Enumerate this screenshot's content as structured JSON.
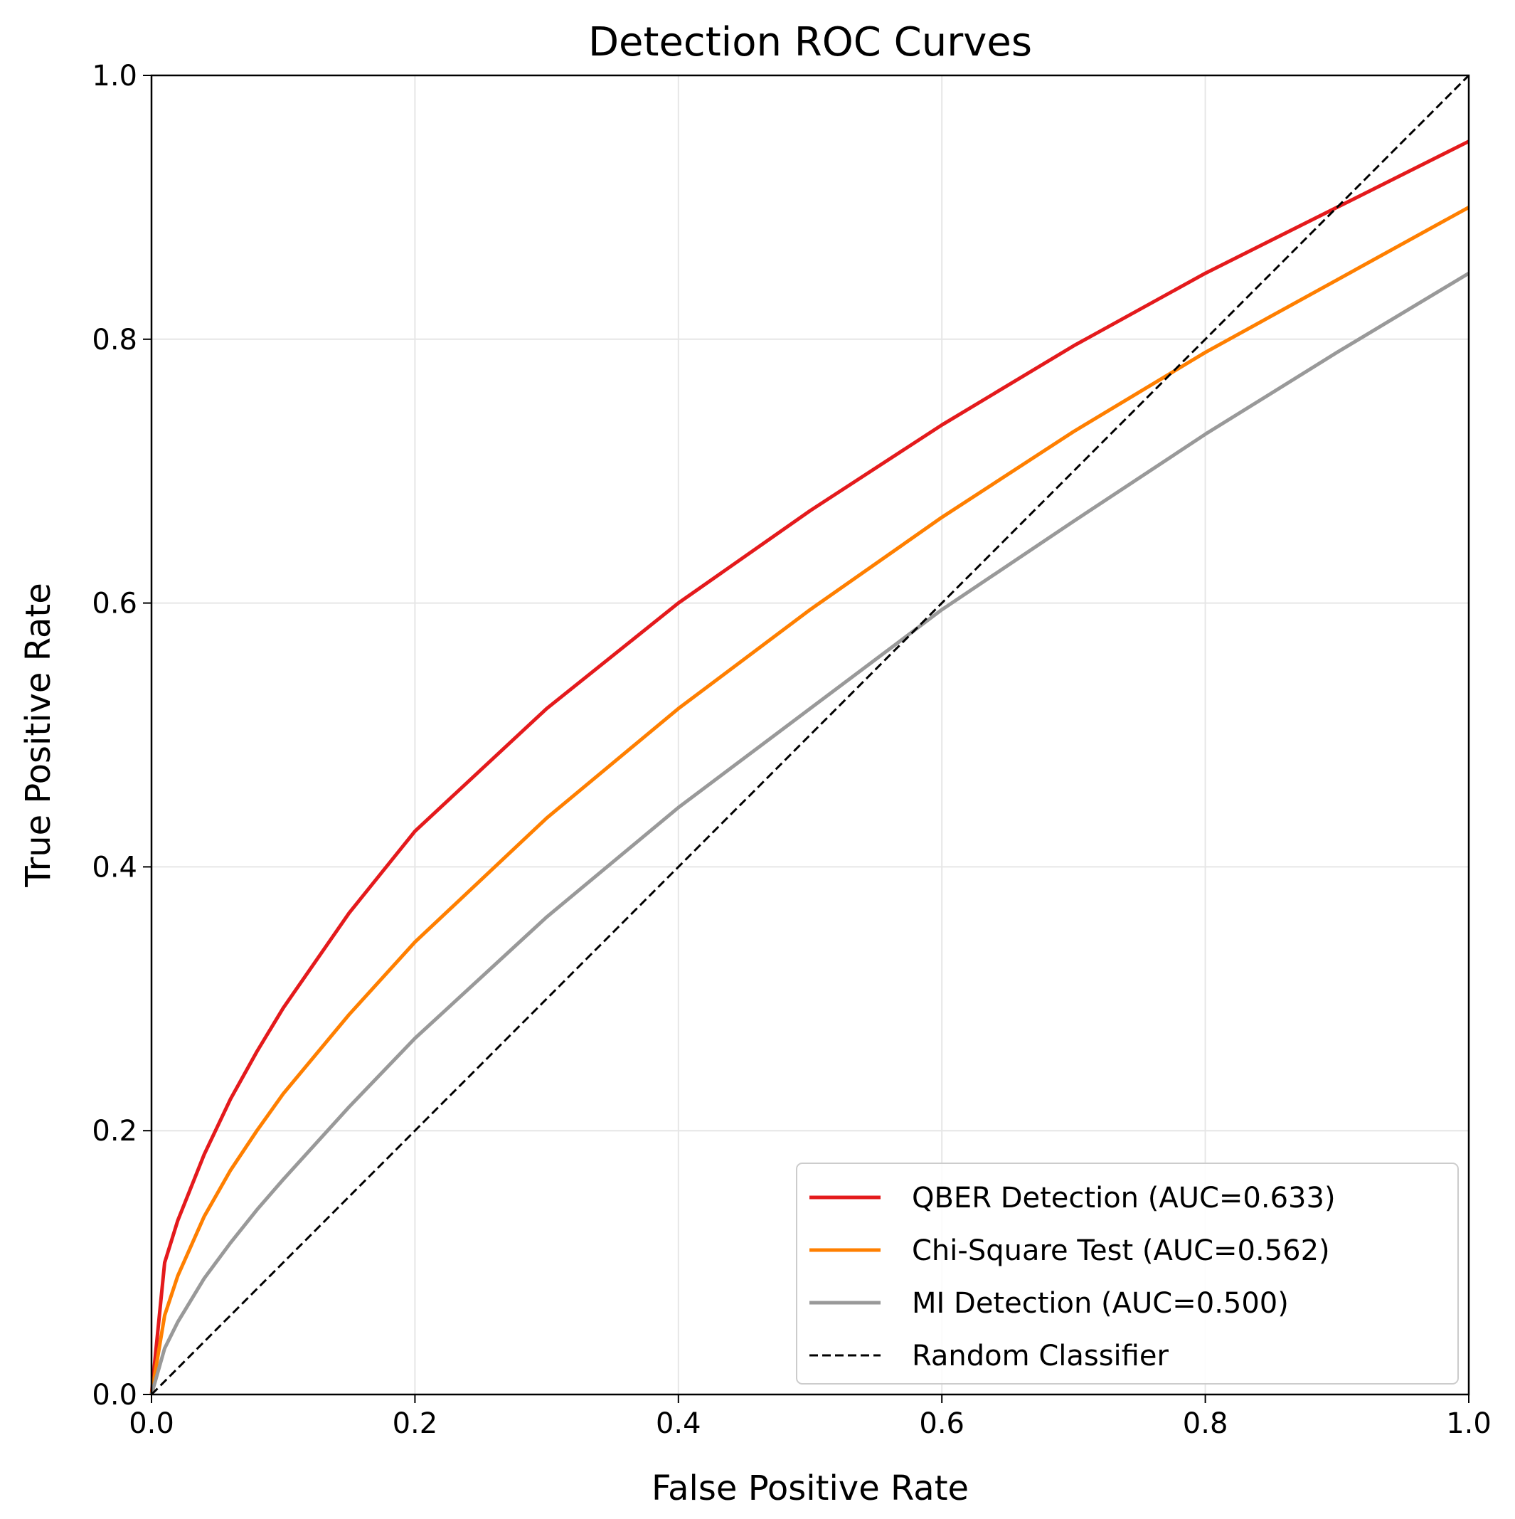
{
  "chart_data": {
    "type": "line",
    "title": "Detection ROC Curves",
    "xlabel": "False Positive Rate",
    "ylabel": "True Positive Rate",
    "xlim": [
      0.0,
      1.0
    ],
    "ylim": [
      0.0,
      1.0
    ],
    "x_ticks": [
      "0.0",
      "0.2",
      "0.4",
      "0.6",
      "0.8",
      "1.0"
    ],
    "y_ticks": [
      "0.0",
      "0.2",
      "0.4",
      "0.6",
      "0.8",
      "1.0"
    ],
    "grid": true,
    "legend_position": "lower-right",
    "series": [
      {
        "name": "QBER Detection (AUC=0.633)",
        "color": "#e41a1c",
        "style": "solid",
        "x": [
          0,
          0.01,
          0.02,
          0.04,
          0.06,
          0.08,
          0.1,
          0.15,
          0.2,
          0.3,
          0.4,
          0.5,
          0.6,
          0.7,
          0.8,
          0.9,
          1.0
        ],
        "y": [
          0,
          0.1,
          0.132,
          0.182,
          0.224,
          0.26,
          0.293,
          0.365,
          0.427,
          0.52,
          0.6,
          0.67,
          0.735,
          0.795,
          0.85,
          0.9,
          0.95
        ]
      },
      {
        "name": "Chi-Square Test (AUC=0.562)",
        "color": "#ff7f00",
        "style": "solid",
        "x": [
          0,
          0.01,
          0.02,
          0.04,
          0.06,
          0.08,
          0.1,
          0.15,
          0.2,
          0.3,
          0.4,
          0.5,
          0.6,
          0.7,
          0.8,
          0.9,
          1.0
        ],
        "y": [
          0,
          0.06,
          0.09,
          0.135,
          0.17,
          0.2,
          0.228,
          0.288,
          0.343,
          0.437,
          0.52,
          0.595,
          0.665,
          0.73,
          0.79,
          0.845,
          0.9
        ]
      },
      {
        "name": "MI Detection (AUC=0.500)",
        "color": "#999999",
        "style": "solid",
        "x": [
          0,
          0.01,
          0.02,
          0.04,
          0.06,
          0.08,
          0.1,
          0.15,
          0.2,
          0.3,
          0.4,
          0.5,
          0.6,
          0.7,
          0.8,
          0.9,
          1.0
        ],
        "y": [
          0,
          0.035,
          0.055,
          0.088,
          0.115,
          0.14,
          0.163,
          0.218,
          0.27,
          0.362,
          0.445,
          0.52,
          0.595,
          0.662,
          0.728,
          0.79,
          0.85
        ]
      },
      {
        "name": "Random Classifier",
        "color": "#000000",
        "style": "dashed",
        "x": [
          0,
          1
        ],
        "y": [
          0,
          1
        ]
      }
    ]
  }
}
